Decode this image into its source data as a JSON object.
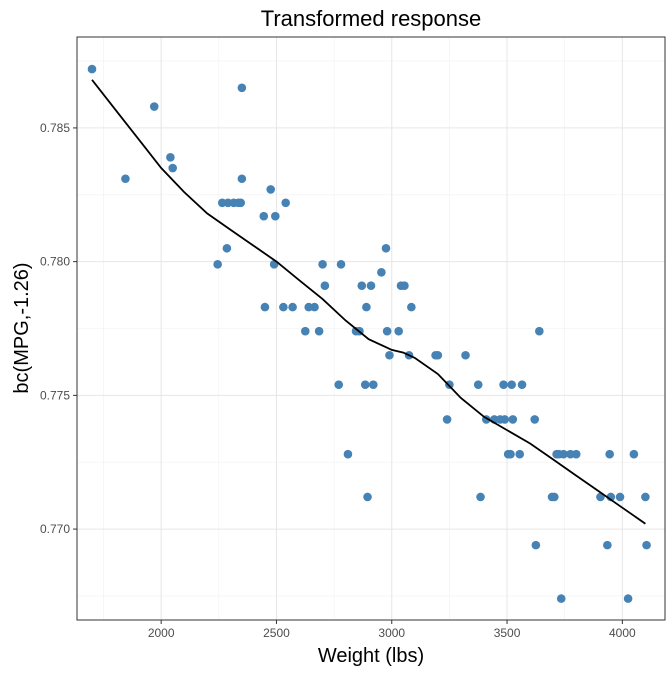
{
  "chart_data": {
    "type": "scatter",
    "title": "Transformed response",
    "xlabel": "Weight (lbs)",
    "ylabel": "bc(MPG,-1.26)",
    "xlim": [
      1635,
      4185
    ],
    "ylim": [
      0.7666,
      0.7884
    ],
    "x_ticks": [
      2000,
      2500,
      3000,
      3500,
      4000
    ],
    "y_ticks": [
      0.77,
      0.775,
      0.78,
      0.785
    ],
    "x_tick_labels": [
      "2000",
      "2500",
      "3000",
      "3500",
      "4000"
    ],
    "y_tick_labels": [
      "0.770",
      "0.775",
      "0.780",
      "0.785"
    ],
    "grid": true,
    "point_color": "#4682B4",
    "line_color": "#000000",
    "points": [
      {
        "x": 1700,
        "y": 0.7872
      },
      {
        "x": 1845,
        "y": 0.7831
      },
      {
        "x": 1970,
        "y": 0.7858
      },
      {
        "x": 2040,
        "y": 0.7839
      },
      {
        "x": 2050,
        "y": 0.7835
      },
      {
        "x": 2245,
        "y": 0.7799
      },
      {
        "x": 2265,
        "y": 0.7822
      },
      {
        "x": 2285,
        "y": 0.7805
      },
      {
        "x": 2290,
        "y": 0.7822
      },
      {
        "x": 2315,
        "y": 0.7822
      },
      {
        "x": 2335,
        "y": 0.7822
      },
      {
        "x": 2345,
        "y": 0.7822
      },
      {
        "x": 2350,
        "y": 0.7831
      },
      {
        "x": 2350,
        "y": 0.7865
      },
      {
        "x": 2445,
        "y": 0.7817
      },
      {
        "x": 2450,
        "y": 0.7783
      },
      {
        "x": 2475,
        "y": 0.7827
      },
      {
        "x": 2490,
        "y": 0.7799
      },
      {
        "x": 2495,
        "y": 0.7817
      },
      {
        "x": 2530,
        "y": 0.7783
      },
      {
        "x": 2540,
        "y": 0.7822
      },
      {
        "x": 2570,
        "y": 0.7783
      },
      {
        "x": 2625,
        "y": 0.7774
      },
      {
        "x": 2640,
        "y": 0.7783
      },
      {
        "x": 2665,
        "y": 0.7783
      },
      {
        "x": 2685,
        "y": 0.7774
      },
      {
        "x": 2700,
        "y": 0.7799
      },
      {
        "x": 2710,
        "y": 0.7791
      },
      {
        "x": 2780,
        "y": 0.7799
      },
      {
        "x": 2770,
        "y": 0.7754
      },
      {
        "x": 2810,
        "y": 0.7728
      },
      {
        "x": 2845,
        "y": 0.7774
      },
      {
        "x": 2860,
        "y": 0.7774
      },
      {
        "x": 2870,
        "y": 0.7791
      },
      {
        "x": 2885,
        "y": 0.7754
      },
      {
        "x": 2890,
        "y": 0.7783
      },
      {
        "x": 2895,
        "y": 0.7712
      },
      {
        "x": 2910,
        "y": 0.7791
      },
      {
        "x": 2920,
        "y": 0.7754
      },
      {
        "x": 2955,
        "y": 0.7796
      },
      {
        "x": 2975,
        "y": 0.7805
      },
      {
        "x": 2980,
        "y": 0.7774
      },
      {
        "x": 2990,
        "y": 0.7765
      },
      {
        "x": 3030,
        "y": 0.7774
      },
      {
        "x": 3040,
        "y": 0.7791
      },
      {
        "x": 3055,
        "y": 0.7791
      },
      {
        "x": 3075,
        "y": 0.7765
      },
      {
        "x": 3085,
        "y": 0.7783
      },
      {
        "x": 3190,
        "y": 0.7765
      },
      {
        "x": 3200,
        "y": 0.7765
      },
      {
        "x": 3240,
        "y": 0.7741
      },
      {
        "x": 3250,
        "y": 0.7754
      },
      {
        "x": 3320,
        "y": 0.7765
      },
      {
        "x": 3375,
        "y": 0.7754
      },
      {
        "x": 3385,
        "y": 0.7712
      },
      {
        "x": 3410,
        "y": 0.7741
      },
      {
        "x": 3445,
        "y": 0.7741
      },
      {
        "x": 3470,
        "y": 0.7741
      },
      {
        "x": 3485,
        "y": 0.7754
      },
      {
        "x": 3490,
        "y": 0.7741
      },
      {
        "x": 3505,
        "y": 0.7728
      },
      {
        "x": 3515,
        "y": 0.7728
      },
      {
        "x": 3520,
        "y": 0.7754
      },
      {
        "x": 3525,
        "y": 0.7741
      },
      {
        "x": 3555,
        "y": 0.7728
      },
      {
        "x": 3565,
        "y": 0.7754
      },
      {
        "x": 3620,
        "y": 0.7741
      },
      {
        "x": 3625,
        "y": 0.7694
      },
      {
        "x": 3640,
        "y": 0.7774
      },
      {
        "x": 3695,
        "y": 0.7712
      },
      {
        "x": 3705,
        "y": 0.7712
      },
      {
        "x": 3715,
        "y": 0.7728
      },
      {
        "x": 3725,
        "y": 0.7728
      },
      {
        "x": 3735,
        "y": 0.7674
      },
      {
        "x": 3745,
        "y": 0.7728
      },
      {
        "x": 3775,
        "y": 0.7728
      },
      {
        "x": 3800,
        "y": 0.7728
      },
      {
        "x": 3905,
        "y": 0.7712
      },
      {
        "x": 3935,
        "y": 0.7694
      },
      {
        "x": 3945,
        "y": 0.7728
      },
      {
        "x": 3950,
        "y": 0.7712
      },
      {
        "x": 3990,
        "y": 0.7712
      },
      {
        "x": 4025,
        "y": 0.7674
      },
      {
        "x": 4050,
        "y": 0.7728
      },
      {
        "x": 4100,
        "y": 0.7712
      },
      {
        "x": 4105,
        "y": 0.7694
      }
    ],
    "smooth_line": [
      {
        "x": 1700,
        "y": 0.7868
      },
      {
        "x": 1800,
        "y": 0.7857
      },
      {
        "x": 1900,
        "y": 0.7846
      },
      {
        "x": 2000,
        "y": 0.7835
      },
      {
        "x": 2100,
        "y": 0.7826
      },
      {
        "x": 2200,
        "y": 0.7818
      },
      {
        "x": 2300,
        "y": 0.7812
      },
      {
        "x": 2400,
        "y": 0.7806
      },
      {
        "x": 2500,
        "y": 0.78
      },
      {
        "x": 2600,
        "y": 0.7793
      },
      {
        "x": 2700,
        "y": 0.7786
      },
      {
        "x": 2800,
        "y": 0.7778
      },
      {
        "x": 2900,
        "y": 0.7771
      },
      {
        "x": 3000,
        "y": 0.7767
      },
      {
        "x": 3050,
        "y": 0.7766
      },
      {
        "x": 3100,
        "y": 0.7764
      },
      {
        "x": 3200,
        "y": 0.7758
      },
      {
        "x": 3300,
        "y": 0.7749
      },
      {
        "x": 3400,
        "y": 0.7742
      },
      {
        "x": 3500,
        "y": 0.7737
      },
      {
        "x": 3600,
        "y": 0.7732
      },
      {
        "x": 3700,
        "y": 0.7726
      },
      {
        "x": 3800,
        "y": 0.772
      },
      {
        "x": 3900,
        "y": 0.7714
      },
      {
        "x": 4000,
        "y": 0.7708
      },
      {
        "x": 4100,
        "y": 0.7702
      }
    ]
  }
}
